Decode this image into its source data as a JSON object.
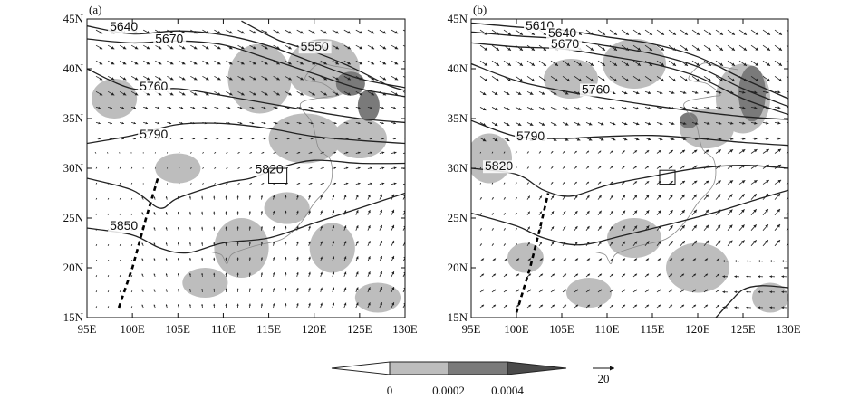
{
  "colors": {
    "shade_low": "#bdbdbd",
    "shade_high": "#7a7a7a",
    "contour": "#222222",
    "vector": "#222222",
    "trough": "#000000",
    "coast": "#8a8a8a"
  },
  "chart_data": [
    {
      "type": "contour",
      "panel_label": "(a)",
      "x_ticks": [
        "95E",
        "100E",
        "105E",
        "110E",
        "115E",
        "120E",
        "125E",
        "130E"
      ],
      "y_ticks": [
        "15N",
        "20N",
        "25N",
        "30N",
        "35N",
        "40N",
        "45N"
      ],
      "xlim": [
        95,
        130
      ],
      "ylim": [
        15,
        45
      ],
      "contours": [
        {
          "label": "5640",
          "label_pos": [
            97.5,
            43.8
          ],
          "points": [
            [
              95,
              44.3
            ],
            [
              100,
              43.5
            ],
            [
              105,
              43.8
            ],
            [
              110,
              43.4
            ],
            [
              115,
              42.3
            ],
            [
              120,
              40.6
            ],
            [
              125,
              39.0
            ],
            [
              130,
              38.1
            ]
          ]
        },
        {
          "label": "5670",
          "label_pos": [
            102.5,
            42.6
          ],
          "points": [
            [
              95,
              43.0
            ],
            [
              100,
              42.6
            ],
            [
              105,
              42.8
            ],
            [
              110,
              42.4
            ],
            [
              115,
              41.0
            ],
            [
              120,
              39.5
            ],
            [
              125,
              38.0
            ],
            [
              130,
              37.2
            ]
          ]
        },
        {
          "label": "5550",
          "label_pos": [
            118.5,
            41.8
          ],
          "points": [
            [
              112,
              44.8
            ],
            [
              116,
              42.9
            ],
            [
              120,
              41.7
            ],
            [
              124,
              40.2
            ],
            [
              128,
              38.4
            ],
            [
              130,
              37.8
            ]
          ]
        },
        {
          "label": "5760",
          "label_pos": [
            100.8,
            37.8
          ],
          "points": [
            [
              95,
              40.0
            ],
            [
              100,
              38.0
            ],
            [
              105,
              38.0
            ],
            [
              110,
              37.3
            ],
            [
              115,
              36.5
            ],
            [
              120,
              35.7
            ],
            [
              125,
              35.0
            ],
            [
              130,
              34.6
            ]
          ]
        },
        {
          "label": "5790",
          "label_pos": [
            100.8,
            33.0
          ],
          "points": [
            [
              95,
              32.5
            ],
            [
              100,
              33.3
            ],
            [
              105,
              34.4
            ],
            [
              110,
              34.5
            ],
            [
              115,
              34.0
            ],
            [
              120,
              33.2
            ],
            [
              125,
              32.8
            ],
            [
              130,
              32.5
            ]
          ]
        },
        {
          "label": "5820",
          "label_pos": [
            113.5,
            29.5
          ],
          "points": [
            [
              95,
              29.0
            ],
            [
              100,
              27.8
            ],
            [
              103,
              26.0
            ],
            [
              105,
              27.0
            ],
            [
              110,
              28.5
            ],
            [
              113,
              29.0
            ],
            [
              116,
              30.0
            ],
            [
              120,
              30.8
            ],
            [
              125,
              30.5
            ],
            [
              130,
              30.5
            ]
          ]
        },
        {
          "label": "5850",
          "label_pos": [
            97.5,
            23.8
          ],
          "points": [
            [
              95,
              24.0
            ],
            [
              100,
              23.3
            ],
            [
              103,
              22.0
            ],
            [
              106,
              21.5
            ],
            [
              110,
              22.5
            ],
            [
              115,
              23.0
            ],
            [
              120,
              24.5
            ],
            [
              125,
              26.0
            ],
            [
              130,
              27.5
            ]
          ]
        }
      ],
      "trough": [
        [
          98.5,
          16.0
        ],
        [
          100.0,
          20.0
        ],
        [
          101.5,
          25.0
        ],
        [
          102.8,
          29.0
        ]
      ],
      "box": {
        "lon": [
          115.0,
          117.0
        ],
        "lat": [
          28.5,
          30.0
        ]
      },
      "shading": [
        {
          "level": 0.0002,
          "lon": 114.0,
          "lat": 39.0,
          "rx": 3.5,
          "ry": 3.5
        },
        {
          "level": 0.0002,
          "lon": 121.0,
          "lat": 40.0,
          "rx": 4.0,
          "ry": 3.0
        },
        {
          "level": 0.0002,
          "lon": 119.0,
          "lat": 33.0,
          "rx": 4.0,
          "ry": 2.5
        },
        {
          "level": 0.0002,
          "lon": 125.0,
          "lat": 33.0,
          "rx": 3.0,
          "ry": 2.0
        },
        {
          "level": 0.0002,
          "lon": 112.0,
          "lat": 22.0,
          "rx": 3.0,
          "ry": 3.0
        },
        {
          "level": 0.0002,
          "lon": 117.0,
          "lat": 26.0,
          "rx": 2.5,
          "ry": 1.6
        },
        {
          "level": 0.0002,
          "lon": 122.0,
          "lat": 22.0,
          "rx": 2.5,
          "ry": 2.5
        },
        {
          "level": 0.0002,
          "lon": 105.0,
          "lat": 30.0,
          "rx": 2.5,
          "ry": 1.5
        },
        {
          "level": 0.0002,
          "lon": 98.0,
          "lat": 37.0,
          "rx": 2.5,
          "ry": 2.0
        },
        {
          "level": 0.0002,
          "lon": 108.0,
          "lat": 18.5,
          "rx": 2.5,
          "ry": 1.5
        },
        {
          "level": 0.0002,
          "lon": 127.0,
          "lat": 17.0,
          "rx": 2.5,
          "ry": 1.5
        },
        {
          "level": 0.0004,
          "lon": 124.0,
          "lat": 38.5,
          "rx": 1.6,
          "ry": 1.2
        },
        {
          "level": 0.0004,
          "lon": 126.0,
          "lat": 36.3,
          "rx": 1.2,
          "ry": 1.6
        }
      ],
      "wind": {
        "lon_start": 96.0,
        "lon_step": 1.3,
        "lat_start": 16.0,
        "lat_step": 1.55,
        "pattern": "a"
      }
    },
    {
      "type": "contour",
      "panel_label": "(b)",
      "x_ticks": [
        "95E",
        "100E",
        "105E",
        "110E",
        "115E",
        "120E",
        "125E",
        "130E"
      ],
      "y_ticks": [
        "15N",
        "20N",
        "25N",
        "30N",
        "35N",
        "40N",
        "45N"
      ],
      "xlim": [
        95,
        130
      ],
      "ylim": [
        15,
        45
      ],
      "contours": [
        {
          "label": "5610",
          "label_pos": [
            101.0,
            43.9
          ],
          "points": [
            [
              95,
              44.6
            ],
            [
              100,
              44.2
            ],
            [
              105,
              43.9
            ],
            [
              110,
              43.2
            ],
            [
              115,
              42.5
            ],
            [
              120,
              41.2
            ],
            [
              125,
              39.0
            ],
            [
              130,
              37.0
            ]
          ]
        },
        {
          "label": "5640",
          "label_pos": [
            103.5,
            43.2
          ],
          "points": [
            [
              95,
              43.7
            ],
            [
              100,
              43.3
            ],
            [
              105,
              43.0
            ],
            [
              110,
              42.3
            ],
            [
              115,
              41.5
            ],
            [
              120,
              40.2
            ],
            [
              125,
              38.0
            ],
            [
              130,
              36.2
            ]
          ]
        },
        {
          "label": "5670",
          "label_pos": [
            103.8,
            42.1
          ],
          "points": [
            [
              95,
              42.6
            ],
            [
              100,
              42.2
            ],
            [
              105,
              42.0
            ],
            [
              110,
              41.3
            ],
            [
              115,
              40.5
            ],
            [
              120,
              39.2
            ],
            [
              125,
              37.0
            ],
            [
              130,
              35.4
            ]
          ]
        },
        {
          "label": "5760",
          "label_pos": [
            107.2,
            37.5
          ],
          "points": [
            [
              95,
              40.5
            ],
            [
              100,
              38.8
            ],
            [
              105,
              37.8
            ],
            [
              110,
              37.0
            ],
            [
              115,
              36.3
            ],
            [
              120,
              35.7
            ],
            [
              125,
              35.2
            ],
            [
              130,
              34.9
            ]
          ]
        },
        {
          "label": "5790",
          "label_pos": [
            100.0,
            32.8
          ],
          "points": [
            [
              95,
              34.8
            ],
            [
              100,
              33.2
            ],
            [
              105,
              33.0
            ],
            [
              110,
              33.2
            ],
            [
              115,
              33.3
            ],
            [
              120,
              33.0
            ],
            [
              125,
              32.6
            ],
            [
              130,
              32.3
            ]
          ]
        },
        {
          "label": "5820",
          "label_pos": [
            96.5,
            29.8
          ],
          "points": [
            [
              95,
              30.0
            ],
            [
              100,
              29.4
            ],
            [
              103,
              27.8
            ],
            [
              106,
              27.2
            ],
            [
              110,
              28.3
            ],
            [
              115,
              29.2
            ],
            [
              120,
              30.0
            ],
            [
              125,
              30.3
            ],
            [
              130,
              30.0
            ]
          ]
        },
        {
          "label": "",
          "label_pos": null,
          "points": [
            [
              95,
              25.5
            ],
            [
              100,
              24.2
            ],
            [
              103,
              23.0
            ],
            [
              107,
              22.3
            ],
            [
              112,
              23.3
            ],
            [
              117,
              24.4
            ],
            [
              122,
              25.6
            ],
            [
              127,
              27.0
            ],
            [
              130,
              27.8
            ]
          ]
        },
        {
          "label": "",
          "label_pos": null,
          "points": [
            [
              122,
              15.0
            ],
            [
              123.5,
              16.5
            ],
            [
              125,
              17.8
            ],
            [
              127,
              18.2
            ],
            [
              130,
              18.0
            ]
          ]
        }
      ],
      "trough": [
        [
          100.0,
          15.5
        ],
        [
          101.5,
          20.0
        ],
        [
          102.6,
          24.0
        ],
        [
          103.5,
          27.5
        ]
      ],
      "box": {
        "lon": [
          115.8,
          117.5
        ],
        "lat": [
          28.4,
          29.8
        ]
      },
      "shading": [
        {
          "level": 0.0002,
          "lon": 125.0,
          "lat": 37.0,
          "rx": 3.0,
          "ry": 3.5
        },
        {
          "level": 0.0002,
          "lon": 121.0,
          "lat": 34.0,
          "rx": 3.0,
          "ry": 2.0
        },
        {
          "level": 0.0002,
          "lon": 113.0,
          "lat": 40.5,
          "rx": 3.5,
          "ry": 2.5
        },
        {
          "level": 0.0002,
          "lon": 106.0,
          "lat": 39.0,
          "rx": 3.0,
          "ry": 2.0
        },
        {
          "level": 0.0002,
          "lon": 97.0,
          "lat": 31.0,
          "rx": 2.5,
          "ry": 2.5
        },
        {
          "level": 0.0002,
          "lon": 113.0,
          "lat": 23.0,
          "rx": 3.0,
          "ry": 2.0
        },
        {
          "level": 0.0002,
          "lon": 120.0,
          "lat": 20.0,
          "rx": 3.5,
          "ry": 2.5
        },
        {
          "level": 0.0002,
          "lon": 108.0,
          "lat": 17.5,
          "rx": 2.5,
          "ry": 1.5
        },
        {
          "level": 0.0002,
          "lon": 128.0,
          "lat": 17.0,
          "rx": 2.0,
          "ry": 1.5
        },
        {
          "level": 0.0002,
          "lon": 101.0,
          "lat": 21.0,
          "rx": 2.0,
          "ry": 1.5
        },
        {
          "level": 0.0004,
          "lon": 126.0,
          "lat": 37.5,
          "rx": 1.5,
          "ry": 2.8
        },
        {
          "level": 0.0004,
          "lon": 119.0,
          "lat": 34.8,
          "rx": 1.0,
          "ry": 0.8
        }
      ],
      "wind": {
        "lon_start": 96.0,
        "lon_step": 1.3,
        "lat_start": 16.0,
        "lat_step": 1.55,
        "pattern": "b"
      }
    }
  ],
  "colorbar": {
    "levels": [
      "0",
      "0.0002",
      "0.0004"
    ],
    "colors": [
      "#ffffff",
      "#bdbdbd",
      "#7a7a7a"
    ],
    "extend": "both"
  },
  "reference_vector": {
    "label": "20",
    "value": 20
  }
}
